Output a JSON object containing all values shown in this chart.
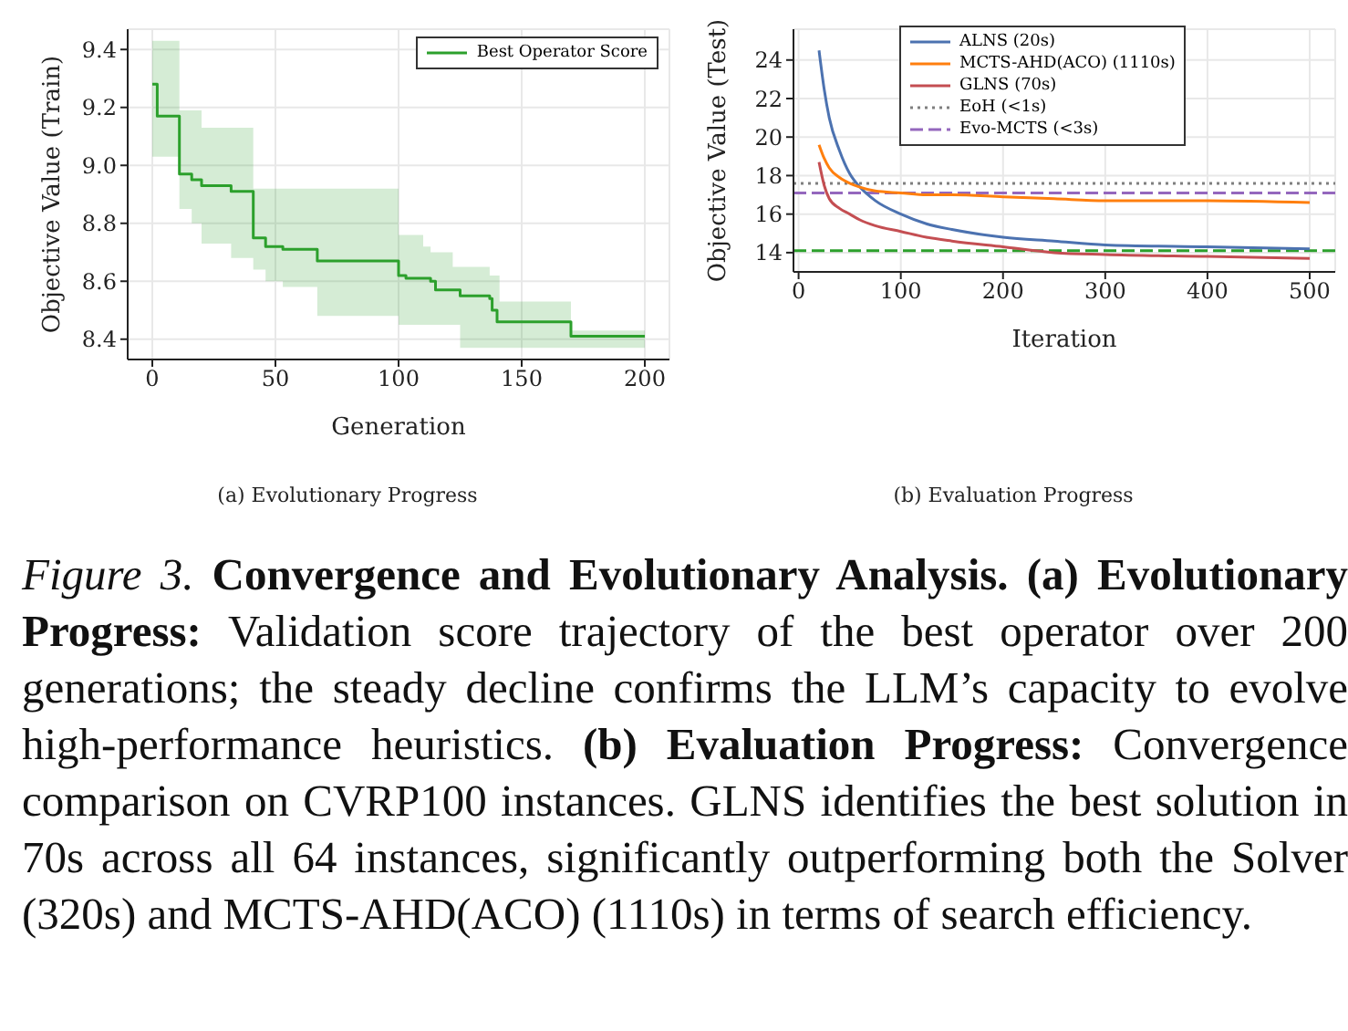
{
  "chart_data": [
    {
      "type": "step",
      "subtitle": "(a) Evolutionary Progress",
      "xlabel": "Generation",
      "ylabel": "Objective Value (Train)",
      "x": [
        0,
        2,
        11,
        16,
        20,
        32,
        41,
        46,
        53,
        67,
        100,
        103,
        110,
        113,
        115,
        122,
        125,
        137,
        138,
        140,
        141,
        170,
        200
      ],
      "series": [
        {
          "name": "Best Operator Score",
          "color": "#2ca02c",
          "values": [
            9.28,
            9.17,
            8.97,
            8.95,
            8.93,
            8.91,
            8.75,
            8.72,
            8.71,
            8.67,
            8.62,
            8.61,
            8.61,
            8.6,
            8.57,
            8.57,
            8.55,
            8.54,
            8.5,
            8.46,
            8.46,
            8.41,
            8.41
          ],
          "upper": [
            9.43,
            9.43,
            9.19,
            9.19,
            9.13,
            9.13,
            8.92,
            8.92,
            8.92,
            8.92,
            8.76,
            8.76,
            8.72,
            8.7,
            8.7,
            8.65,
            8.65,
            8.62,
            8.62,
            8.62,
            8.53,
            8.43,
            8.43
          ],
          "lower": [
            9.03,
            9.03,
            8.85,
            8.8,
            8.73,
            8.68,
            8.64,
            8.6,
            8.58,
            8.48,
            8.45,
            8.45,
            8.45,
            8.45,
            8.45,
            8.45,
            8.37,
            8.37,
            8.37,
            8.37,
            8.37,
            8.37,
            8.37
          ]
        }
      ],
      "xlim": [
        -10,
        210
      ],
      "xticks": [
        0,
        50,
        100,
        150,
        200
      ],
      "ylim": [
        8.33,
        9.47
      ],
      "yticks": [
        8.4,
        8.6,
        8.8,
        {
          "value": 9,
          "label": "9.0"
        },
        9.2,
        9.4
      ],
      "grid": true,
      "legend": "top right"
    },
    {
      "type": "line",
      "subtitle": "(b) Evaluation Progress",
      "xlabel": "Iteration",
      "ylabel": "Objective Value (Test)",
      "x": [
        20,
        25,
        30,
        40,
        50,
        60,
        75,
        100,
        125,
        150,
        200,
        250,
        300,
        400,
        500
      ],
      "series": [
        {
          "name": "ALNS (20s)",
          "color": "#4c72b0",
          "values": [
            24.5,
            22.5,
            21.0,
            19.3,
            18.1,
            17.4,
            16.7,
            16.0,
            15.5,
            15.2,
            14.8,
            14.6,
            14.4,
            14.3,
            14.2
          ]
        },
        {
          "name": "MCTS-AHD(ACO) (1110s)",
          "color": "#ff7f0e",
          "values": [
            19.6,
            18.9,
            18.4,
            17.9,
            17.6,
            17.4,
            17.2,
            17.1,
            17.0,
            17.0,
            16.9,
            16.8,
            16.7,
            16.7,
            16.6
          ]
        },
        {
          "name": "GLNS (70s)",
          "color": "#c44e52",
          "values": [
            18.7,
            17.5,
            16.8,
            16.3,
            16.0,
            15.7,
            15.4,
            15.1,
            14.8,
            14.6,
            14.3,
            14.0,
            13.9,
            13.8,
            13.7
          ]
        }
      ],
      "ref_lines": [
        {
          "axis": "y",
          "value": 14.1,
          "color": "#2ca02c",
          "line_style": "dashed"
        },
        {
          "axis": "y",
          "value": 17.6,
          "label": "EoH (<1s)",
          "color": "#7f7f7f",
          "line_style": "dotted"
        },
        {
          "axis": "y",
          "value": 17.1,
          "label": "Evo-MCTS (<3s)",
          "color": "#9467bd",
          "line_style": "dashed"
        }
      ],
      "xlim": [
        -5,
        525
      ],
      "xticks": [
        0,
        100,
        200,
        300,
        400,
        500
      ],
      "ylim": [
        13,
        25.6
      ],
      "yticks": [
        14,
        16,
        18,
        20,
        22,
        24
      ],
      "grid": true,
      "legend": "top",
      "annotations": [
        "Figure 3.",
        "Convergence and Evolutionary Analysis. (a) Evolutionary Progress:",
        "Validation score trajectory of the best operator over 200 generations; the steady decline confirms the LLM’s capacity to evolve high-performance heuristics.",
        "(b) Evaluation Progress:",
        "Convergence comparison on CVRP100 instances. GLNS identifies the best solution in 70s across all 64 instances, significantly outperforming both the Solver (320s) and MCTS-AHD(ACO) (1110s) in terms of search efficiency."
      ]
    }
  ]
}
